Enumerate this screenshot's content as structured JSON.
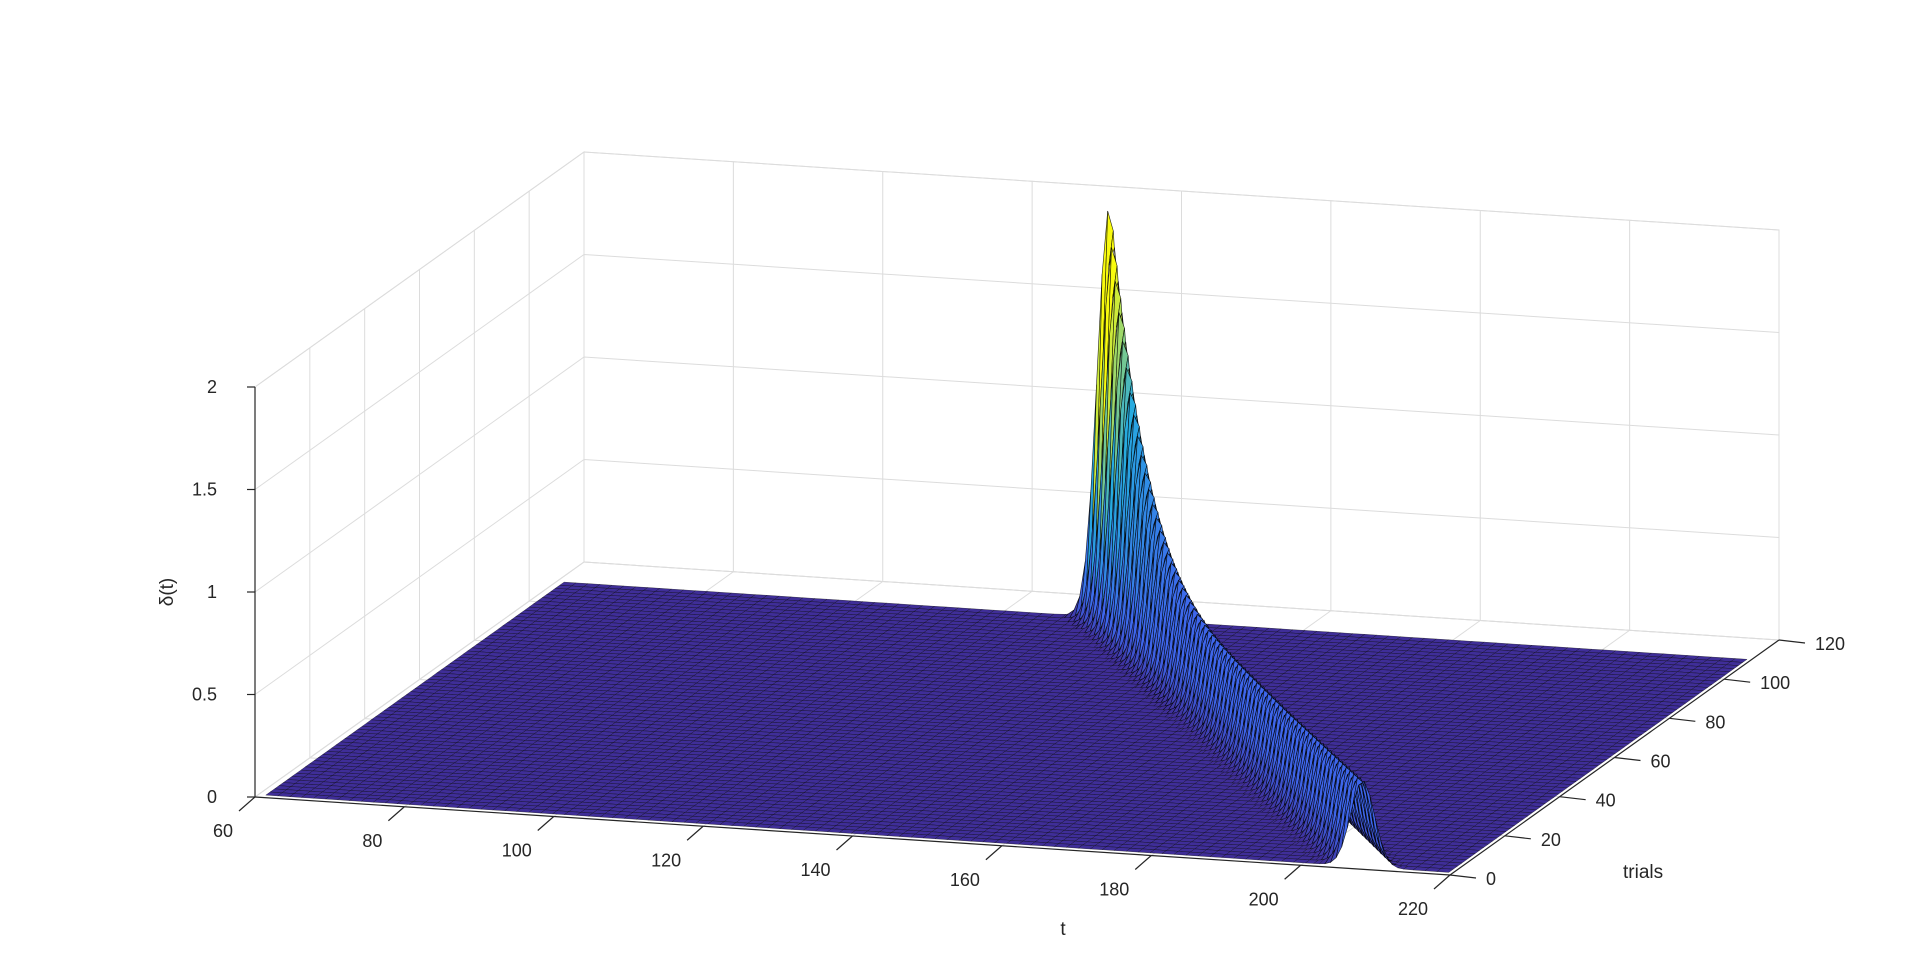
{
  "chart_data": {
    "type": "surface",
    "xlabel": "t",
    "ylabel": "trials",
    "zlabel": "δ(t)",
    "xlim": [
      60,
      220
    ],
    "ylim": [
      0,
      120
    ],
    "zlim": [
      0,
      2
    ],
    "xticks": [
      "60",
      "80",
      "100",
      "120",
      "140",
      "160",
      "180",
      "200",
      "220"
    ],
    "yticks": [
      "0",
      "20",
      "40",
      "60",
      "80",
      "100",
      "120"
    ],
    "zticks": [
      "0",
      "0.5",
      "1",
      "1.5",
      "2"
    ],
    "grid": true,
    "colormap": "parula",
    "t_range": [
      61,
      220
    ],
    "trials_range": [
      1,
      110
    ],
    "ridge": {
      "t_at_first_trial": 208,
      "t_at_last_trial": 134,
      "height_start": 0.42,
      "height_at_trial_34": 0.4,
      "height_at_last_trial": 2.0
    },
    "colors": {
      "floor": "#3f2e98",
      "ridge": "#3e66ec",
      "peak": "#f9fb0e",
      "edges": "#000000"
    }
  }
}
